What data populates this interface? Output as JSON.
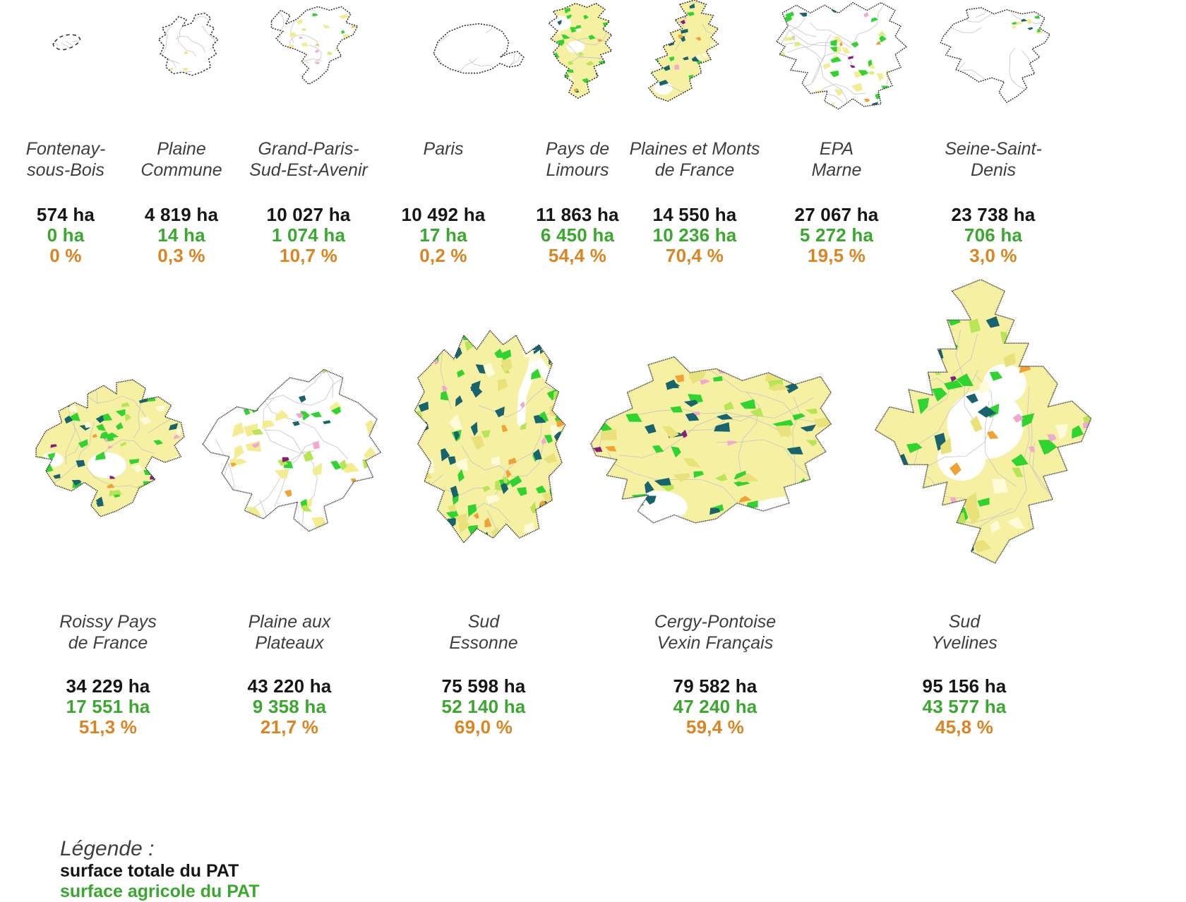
{
  "legend": {
    "heading": "Légende :",
    "items": [
      {
        "label": "surface totale du PAT",
        "color": "#161616"
      },
      {
        "label": "surface agricole du PAT",
        "color": "#3aa82f"
      }
    ]
  },
  "colors": {
    "territory_name_text": "#3e3e3e",
    "total_area_text": "#161616",
    "agricultural_area_text": "#3aa82f",
    "agricultural_share_text": "#dc841f",
    "map_agricultural_fill": "#f6f1a2",
    "map_border": "#2b2b2b"
  },
  "territories": [
    {
      "name1": "Fontenay-",
      "name2": "sous-Bois",
      "total": "574 ha",
      "agricultural": "0 ha",
      "share": "0 %"
    },
    {
      "name1": "Plaine",
      "name2": "Commune",
      "total": "4 819 ha",
      "agricultural": "14 ha",
      "share": "0,3 %"
    },
    {
      "name1": "Grand-Paris-",
      "name2": "Sud-Est-Avenir",
      "total": "10 027 ha",
      "agricultural": "1 074 ha",
      "share": "10,7 %"
    },
    {
      "name1": "Paris",
      "name2": "",
      "total": "10 492 ha",
      "agricultural": "17 ha",
      "share": "0,2 %"
    },
    {
      "name1": "Pays de",
      "name2": "Limours",
      "total": "11 863 ha",
      "agricultural": "6 450 ha",
      "share": "54,4 %"
    },
    {
      "name1": "Plaines et Monts",
      "name2": "de France",
      "total": "14 550 ha",
      "agricultural": "10 236 ha",
      "share": "70,4 %"
    },
    {
      "name1": "EPA",
      "name2": "Marne",
      "total": "27 067 ha",
      "agricultural": "5 272 ha",
      "share": "19,5 %"
    },
    {
      "name1": "Seine-Saint-",
      "name2": "Denis",
      "total": "23 738 ha",
      "agricultural": "706 ha",
      "share": "3,0 %"
    },
    {
      "name1": "Roissy Pays",
      "name2": "de France",
      "total": "34 229 ha",
      "agricultural": "17 551 ha",
      "share": "51,3 %"
    },
    {
      "name1": "Plaine aux",
      "name2": "Plateaux",
      "total": "43 220 ha",
      "agricultural": "9 358 ha",
      "share": "21,7 %"
    },
    {
      "name1": "Sud",
      "name2": "Essonne",
      "total": "75 598 ha",
      "agricultural": "52 140 ha",
      "share": "69,0 %"
    },
    {
      "name1": "Cergy-Pontoise",
      "name2": "Vexin Français",
      "total": "79 582 ha",
      "agricultural": "47 240 ha",
      "share": "59,4 %"
    },
    {
      "name1": "Sud",
      "name2": "Yvelines",
      "total": "95 156 ha",
      "agricultural": "43 577 ha",
      "share": "45,8 %"
    }
  ],
  "chart_data": {
    "type": "table",
    "columns": [
      "territory",
      "total_area_ha",
      "agricultural_area_ha",
      "agricultural_share_pct"
    ],
    "rows": [
      [
        "Fontenay-sous-Bois",
        574,
        0,
        0.0
      ],
      [
        "Plaine Commune",
        4819,
        14,
        0.3
      ],
      [
        "Grand-Paris-Sud-Est-Avenir",
        10027,
        1074,
        10.7
      ],
      [
        "Paris",
        10492,
        17,
        0.2
      ],
      [
        "Pays de Limours",
        11863,
        6450,
        54.4
      ],
      [
        "Plaines et Monts de France",
        14550,
        10236,
        70.4
      ],
      [
        "EPA Marne",
        27067,
        5272,
        19.5
      ],
      [
        "Seine-Saint-Denis",
        23738,
        706,
        3.0
      ],
      [
        "Roissy Pays de France",
        34229,
        17551,
        51.3
      ],
      [
        "Plaine aux Plateaux",
        43220,
        9358,
        21.7
      ],
      [
        "Sud Essonne",
        75598,
        52140,
        69.0
      ],
      [
        "Cergy-Pontoise Vexin Français",
        79582,
        47240,
        59.4
      ],
      [
        "Sud Yvelines",
        95156,
        43577,
        45.8
      ]
    ],
    "legend_entries": [
      "surface totale du PAT",
      "surface agricole du PAT"
    ]
  }
}
